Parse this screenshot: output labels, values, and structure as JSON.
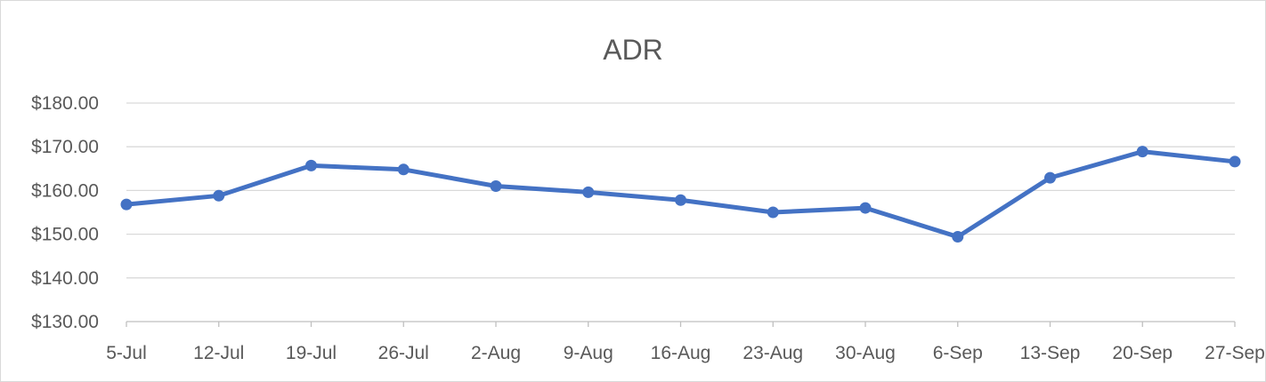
{
  "chart_data": {
    "type": "line",
    "title": "ADR",
    "xlabel": "",
    "ylabel": "",
    "categories": [
      "5-Jul",
      "12-Jul",
      "19-Jul",
      "26-Jul",
      "2-Aug",
      "9-Aug",
      "16-Aug",
      "23-Aug",
      "30-Aug",
      "6-Sep",
      "13-Sep",
      "20-Sep",
      "27-Sep"
    ],
    "series": [
      {
        "values": [
          156.8,
          158.8,
          165.7,
          164.8,
          161.0,
          159.6,
          157.8,
          155.0,
          156.0,
          149.4,
          162.9,
          168.9,
          166.6
        ]
      }
    ],
    "ylim": [
      130,
      180
    ],
    "y_ticks": [
      130,
      140,
      150,
      160,
      170,
      180
    ],
    "y_tick_labels": [
      "$130.00",
      "$140.00",
      "$150.00",
      "$160.00",
      "$170.00",
      "$180.00"
    ],
    "grid": true,
    "legend": "none",
    "colors": {
      "series_line": "#4472c4",
      "gridline": "#d9d9d9",
      "text": "#595959"
    }
  }
}
